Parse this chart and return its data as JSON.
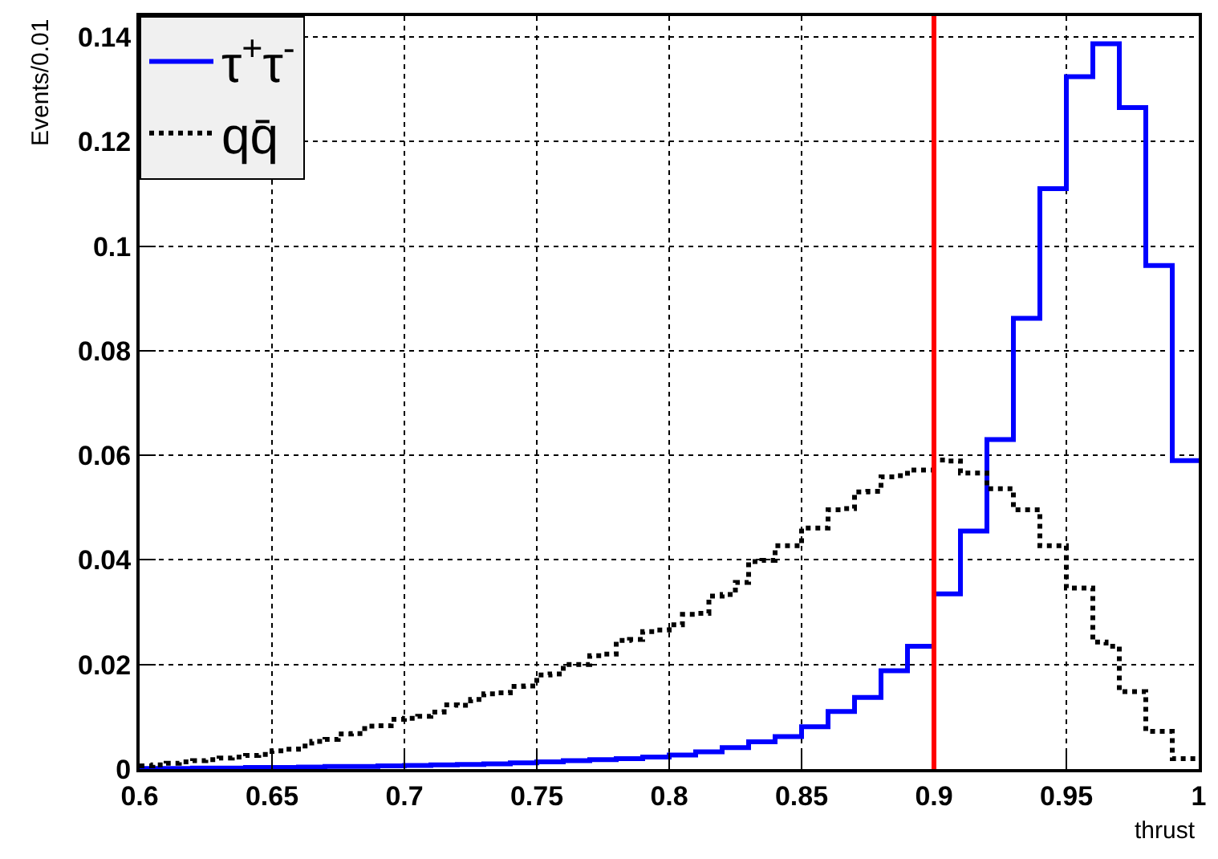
{
  "chart_data": {
    "type": "histogram",
    "xlabel": "thrust",
    "ylabel": "Events/0.01",
    "bins": [
      0.6,
      0.605,
      0.61,
      0.615,
      0.62,
      0.625,
      0.63,
      0.635,
      0.64,
      0.645,
      0.65,
      0.655,
      0.66,
      0.665,
      0.67,
      0.675,
      0.68,
      0.685,
      0.69,
      0.695,
      0.7,
      0.705,
      0.71,
      0.715,
      0.72,
      0.725,
      0.73,
      0.735,
      0.74,
      0.745,
      0.75,
      0.755,
      0.76,
      0.765,
      0.77,
      0.775,
      0.78,
      0.785,
      0.79,
      0.795,
      0.8,
      0.805,
      0.81,
      0.815,
      0.82,
      0.825,
      0.83,
      0.835,
      0.84,
      0.845,
      0.85,
      0.855,
      0.86,
      0.865,
      0.87,
      0.875,
      0.88,
      0.885,
      0.89,
      0.895,
      0.9,
      0.905,
      0.91,
      0.915,
      0.92,
      0.925,
      0.93,
      0.935,
      0.94,
      0.945,
      0.95,
      0.955,
      0.96,
      0.965,
      0.97,
      0.975,
      0.98,
      0.985,
      0.99,
      0.995,
      1.0
    ],
    "series": [
      {
        "name": "τ$^{+}$τ$^{-}$",
        "color": "#0000ff",
        "line_style": "solid",
        "values": [
          0.0001,
          0.0001,
          0.0001,
          0.0001,
          0.0002,
          0.0002,
          0.0002,
          0.0002,
          0.0003,
          0.0003,
          0.0003,
          0.0003,
          0.0004,
          0.0004,
          0.0005,
          0.0005,
          0.0005,
          0.0005,
          0.0006,
          0.0006,
          0.0007,
          0.0007,
          0.0008,
          0.0008,
          0.0009,
          0.0009,
          0.001,
          0.001,
          0.0012,
          0.0012,
          0.0014,
          0.0014,
          0.0016,
          0.0016,
          0.0018,
          0.0018,
          0.002,
          0.002,
          0.0023,
          0.0023,
          0.0027,
          0.0027,
          0.0033,
          0.0033,
          0.0041,
          0.0041,
          0.0052,
          0.0052,
          0.0062,
          0.0062,
          0.0081,
          0.0081,
          0.011,
          0.011,
          0.0137,
          0.0137,
          0.0188,
          0.0188,
          0.0235,
          0.0235,
          0.0335,
          0.0335,
          0.0455,
          0.0455,
          0.063,
          0.063,
          0.0862,
          0.0862,
          0.111,
          0.111,
          0.1324,
          0.1324,
          0.1387,
          0.1387,
          0.1265,
          0.1265,
          0.0963,
          0.0963,
          0.059,
          0.059
        ]
      },
      {
        "name": "qq̄",
        "color": "#000000",
        "line_style": "dotted",
        "values": [
          0.0006,
          0.0008,
          0.0011,
          0.0014,
          0.0016,
          0.0018,
          0.0021,
          0.0023,
          0.0026,
          0.0028,
          0.0035,
          0.0038,
          0.0044,
          0.0053,
          0.0057,
          0.0067,
          0.0068,
          0.0082,
          0.0083,
          0.0095,
          0.0097,
          0.0101,
          0.0109,
          0.0123,
          0.0122,
          0.0133,
          0.0144,
          0.0146,
          0.0158,
          0.0159,
          0.018,
          0.0182,
          0.02,
          0.02,
          0.0217,
          0.022,
          0.0246,
          0.0248,
          0.0263,
          0.0266,
          0.0276,
          0.0296,
          0.0298,
          0.0331,
          0.0334,
          0.0357,
          0.0397,
          0.0399,
          0.0427,
          0.0427,
          0.0461,
          0.0461,
          0.0496,
          0.0498,
          0.053,
          0.0531,
          0.0559,
          0.0561,
          0.0572,
          0.0572,
          0.0591,
          0.0589,
          0.0566,
          0.0566,
          0.0536,
          0.0536,
          0.0496,
          0.0496,
          0.0427,
          0.0427,
          0.0346,
          0.0346,
          0.0243,
          0.0235,
          0.0148,
          0.0148,
          0.0072,
          0.0072,
          0.002,
          0.002
        ]
      }
    ],
    "ref_lines": [
      {
        "axis": "x",
        "value": 0.9,
        "color": "#ff0000",
        "line_style": "solid"
      }
    ],
    "xlim": [
      0.6,
      1.0
    ],
    "ylim": [
      0,
      0.144
    ],
    "xticks": [
      {
        "value": 0.6,
        "label": "0.6"
      },
      0.65,
      {
        "value": 0.7,
        "label": "0.7"
      },
      0.75,
      {
        "value": 0.8,
        "label": "0.8"
      },
      0.85,
      {
        "value": 0.9,
        "label": "0.9"
      },
      0.95,
      {
        "value": 1.0,
        "label": "1"
      }
    ],
    "yticks": [
      0,
      0.02,
      0.04,
      0.06,
      0.08,
      {
        "value": 0.1,
        "label": "0.1"
      },
      0.12,
      0.14
    ],
    "grid": true,
    "legend": "top left",
    "marker": "none"
  }
}
